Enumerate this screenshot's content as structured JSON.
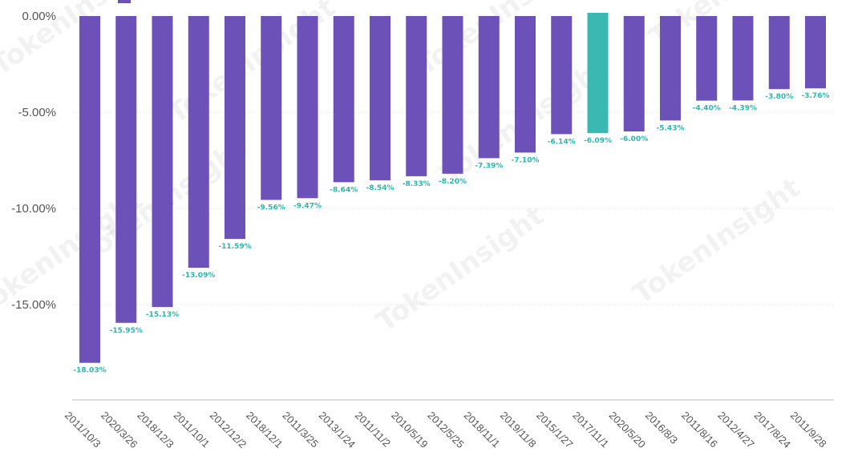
{
  "chart_data": {
    "type": "bar",
    "title": "",
    "xlabel": "",
    "ylabel": "",
    "ylim": [
      -20,
      0
    ],
    "yticks": [
      "0.00%",
      "-5.00%",
      "-10.00%",
      "-15.00%"
    ],
    "ytick_values": [
      0,
      -5,
      -10,
      -15
    ],
    "grid": true,
    "legend_placement": "top-left",
    "watermark": "TokenInsight",
    "colors": {
      "bar": "#6c52b8",
      "highlight": "#3ab8b2",
      "label": "#2bb7b0",
      "grid": "#e6e6e6",
      "axis": "#bdbdbd"
    },
    "highlight_index": 14,
    "categories": [
      "2011/10/3",
      "2020/3/26",
      "2018/12/3",
      "2011/10/1",
      "2012/12/2",
      "2018/12/1",
      "2011/3/25",
      "2013/1/24",
      "2011/11/2",
      "2010/5/19",
      "2012/5/25",
      "2018/11/1",
      "2019/11/8",
      "2015/1/27",
      "2017/11/1",
      "2020/5/20",
      "2016/8/3",
      "2011/8/16",
      "2012/4/27",
      "2017/8/24",
      "2011/9/28"
    ],
    "series": [
      {
        "values": [
          -18.03,
          -15.95,
          -15.13,
          -13.09,
          -11.59,
          -9.56,
          -9.47,
          -8.64,
          -8.54,
          -8.33,
          -8.2,
          -7.39,
          -7.1,
          -6.14,
          -6.09,
          -6.0,
          -5.43,
          -4.4,
          -4.39,
          -3.8,
          -3.76
        ],
        "labels": [
          "-18.03%",
          "-15.95%",
          "-15.13%",
          "-13.09%",
          "-11.59%",
          "-9.56%",
          "-9.47%",
          "-8.64%",
          "-8.54%",
          "-8.33%",
          "-8.20%",
          "-7.39%",
          "-7.10%",
          "-6.14%",
          "-6.09%",
          "-6.00%",
          "-5.43%",
          "-4.40%",
          "-4.39%",
          "-3.80%",
          "-3.76%"
        ]
      }
    ]
  }
}
